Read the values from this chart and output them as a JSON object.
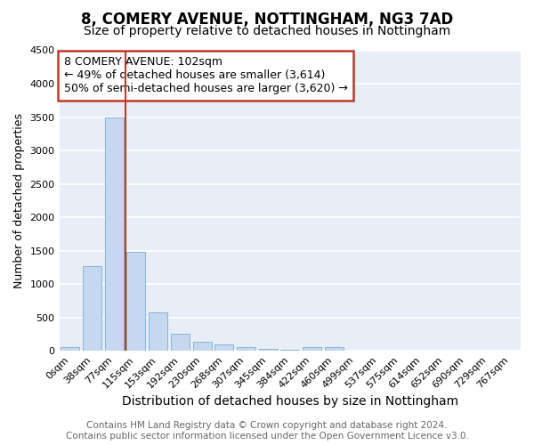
{
  "title1": "8, COMERY AVENUE, NOTTINGHAM, NG3 7AD",
  "title2": "Size of property relative to detached houses in Nottingham",
  "xlabel": "Distribution of detached houses by size in Nottingham",
  "ylabel": "Number of detached properties",
  "categories": [
    "0sqm",
    "38sqm",
    "77sqm",
    "115sqm",
    "153sqm",
    "192sqm",
    "230sqm",
    "268sqm",
    "307sqm",
    "345sqm",
    "384sqm",
    "422sqm",
    "460sqm",
    "499sqm",
    "537sqm",
    "575sqm",
    "614sqm",
    "652sqm",
    "690sqm",
    "729sqm",
    "767sqm"
  ],
  "values": [
    50,
    1270,
    3500,
    1480,
    580,
    250,
    140,
    90,
    55,
    30,
    20,
    50,
    50,
    0,
    0,
    0,
    0,
    0,
    0,
    0,
    0
  ],
  "bar_color": "#c5d8f0",
  "bar_edge_color": "#7aadd4",
  "ylim": [
    0,
    4500
  ],
  "yticks": [
    0,
    500,
    1000,
    1500,
    2000,
    2500,
    3000,
    3500,
    4000,
    4500
  ],
  "vline_x": 3.0,
  "vline_color": "#c0392b",
  "annotation_line1": "8 COMERY AVENUE: 102sqm",
  "annotation_line2": "← 49% of detached houses are smaller (3,614)",
  "annotation_line3": "50% of semi-detached houses are larger (3,620) →",
  "annotation_box_color": "#ffffff",
  "annotation_box_edgecolor": "#c0392b",
  "footer1": "Contains HM Land Registry data © Crown copyright and database right 2024.",
  "footer2": "Contains public sector information licensed under the Open Government Licence v3.0.",
  "fig_bg_color": "#ffffff",
  "plot_bg_color": "#e8eef8",
  "grid_color": "#ffffff",
  "title1_fontsize": 12,
  "title2_fontsize": 10,
  "xlabel_fontsize": 10,
  "ylabel_fontsize": 9,
  "tick_fontsize": 8,
  "footer_fontsize": 7.5,
  "annotation_fontsize": 9
}
